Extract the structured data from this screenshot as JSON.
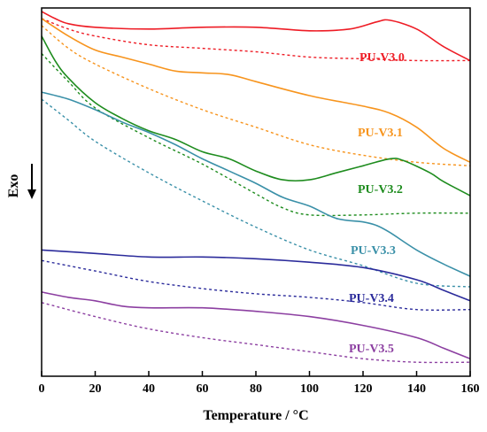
{
  "chart_data": {
    "type": "line",
    "xlabel": "Temperature / °C",
    "ylabel": "Exo",
    "xlim": [
      0,
      160
    ],
    "x_ticks": [
      "0",
      "20",
      "40",
      "60",
      "80",
      "100",
      "120",
      "140",
      "160"
    ],
    "y_ticks_shown": false,
    "grid": false,
    "legend": "inline labels at right side",
    "series": [
      {
        "name": "PU-V3.0",
        "color": "#ee1c25",
        "solid": [
          [
            0,
            99
          ],
          [
            5,
            97
          ],
          [
            10,
            95.5
          ],
          [
            20,
            94.5
          ],
          [
            40,
            94
          ],
          [
            60,
            94.5
          ],
          [
            80,
            94.5
          ],
          [
            100,
            93.5
          ],
          [
            115,
            94
          ],
          [
            125,
            96
          ],
          [
            130,
            96.5
          ],
          [
            140,
            94
          ],
          [
            150,
            89
          ],
          [
            160,
            85
          ]
        ],
        "dashed": [
          [
            0,
            97
          ],
          [
            10,
            94
          ],
          [
            20,
            92
          ],
          [
            40,
            89.5
          ],
          [
            60,
            88.5
          ],
          [
            80,
            87.5
          ],
          [
            100,
            86
          ],
          [
            120,
            85.5
          ],
          [
            140,
            85
          ],
          [
            160,
            85
          ]
        ]
      },
      {
        "name": "PU-V3.1",
        "color": "#f7941d",
        "solid": [
          [
            0,
            97
          ],
          [
            10,
            92
          ],
          [
            20,
            88
          ],
          [
            30,
            86
          ],
          [
            40,
            84
          ],
          [
            50,
            82
          ],
          [
            60,
            81.5
          ],
          [
            70,
            81
          ],
          [
            80,
            79
          ],
          [
            100,
            75
          ],
          [
            120,
            72
          ],
          [
            130,
            70
          ],
          [
            140,
            66
          ],
          [
            150,
            60
          ],
          [
            160,
            56
          ]
        ],
        "dashed": [
          [
            0,
            95
          ],
          [
            10,
            88.5
          ],
          [
            20,
            84
          ],
          [
            40,
            77
          ],
          [
            60,
            71
          ],
          [
            80,
            66
          ],
          [
            100,
            61
          ],
          [
            120,
            58
          ],
          [
            140,
            56
          ],
          [
            160,
            55
          ]
        ]
      },
      {
        "name": "PU-V3.2",
        "color": "#1e8c1e",
        "solid": [
          [
            0,
            92
          ],
          [
            5,
            85
          ],
          [
            10,
            80
          ],
          [
            20,
            73
          ],
          [
            30,
            68.5
          ],
          [
            40,
            65
          ],
          [
            50,
            62.5
          ],
          [
            60,
            59
          ],
          [
            70,
            57
          ],
          [
            80,
            53.5
          ],
          [
            90,
            51
          ],
          [
            100,
            51
          ],
          [
            110,
            53
          ],
          [
            120,
            55
          ],
          [
            130,
            57
          ],
          [
            135,
            56.5
          ],
          [
            145,
            53
          ],
          [
            150,
            50.5
          ],
          [
            160,
            46.5
          ]
        ],
        "dashed": [
          [
            0,
            87
          ],
          [
            10,
            79
          ],
          [
            20,
            71.5
          ],
          [
            40,
            63
          ],
          [
            60,
            55.5
          ],
          [
            80,
            47
          ],
          [
            90,
            43
          ],
          [
            100,
            41
          ],
          [
            120,
            41
          ],
          [
            140,
            41.5
          ],
          [
            160,
            41.5
          ]
        ]
      },
      {
        "name": "PU-V3.3",
        "color": "#3a90a8",
        "solid": [
          [
            0,
            76
          ],
          [
            10,
            74
          ],
          [
            20,
            71
          ],
          [
            30,
            67.5
          ],
          [
            40,
            64.5
          ],
          [
            50,
            61
          ],
          [
            60,
            57
          ],
          [
            70,
            53.5
          ],
          [
            80,
            50
          ],
          [
            90,
            46
          ],
          [
            100,
            43.5
          ],
          [
            110,
            40
          ],
          [
            120,
            39
          ],
          [
            125,
            38
          ],
          [
            130,
            36
          ],
          [
            140,
            31
          ],
          [
            150,
            27
          ],
          [
            160,
            23.5
          ]
        ],
        "dashed": [
          [
            0,
            74
          ],
          [
            10,
            68
          ],
          [
            20,
            62
          ],
          [
            40,
            53
          ],
          [
            60,
            45
          ],
          [
            80,
            37.5
          ],
          [
            100,
            31
          ],
          [
            120,
            26.5
          ],
          [
            140,
            21.5
          ],
          [
            160,
            20.5
          ]
        ]
      },
      {
        "name": "PU-V3.4",
        "color": "#2b2b9b",
        "solid": [
          [
            0,
            31
          ],
          [
            20,
            30
          ],
          [
            40,
            29
          ],
          [
            60,
            29
          ],
          [
            80,
            28.5
          ],
          [
            100,
            27.5
          ],
          [
            120,
            26
          ],
          [
            140,
            22.5
          ],
          [
            150,
            19.5
          ],
          [
            160,
            16.5
          ]
        ],
        "dashed": [
          [
            0,
            28
          ],
          [
            20,
            25
          ],
          [
            40,
            22
          ],
          [
            60,
            20
          ],
          [
            80,
            18.5
          ],
          [
            100,
            17.5
          ],
          [
            120,
            16
          ],
          [
            140,
            14
          ],
          [
            160,
            14
          ]
        ]
      },
      {
        "name": "PU-V3.5",
        "color": "#8c3fa1",
        "solid": [
          [
            0,
            19
          ],
          [
            10,
            17.5
          ],
          [
            20,
            16.5
          ],
          [
            30,
            15
          ],
          [
            40,
            14.5
          ],
          [
            60,
            14.5
          ],
          [
            80,
            13.5
          ],
          [
            100,
            12
          ],
          [
            120,
            9.5
          ],
          [
            140,
            6
          ],
          [
            150,
            3
          ],
          [
            160,
            0
          ]
        ],
        "dashed": [
          [
            0,
            16
          ],
          [
            20,
            12
          ],
          [
            40,
            8.5
          ],
          [
            60,
            6
          ],
          [
            80,
            4
          ],
          [
            100,
            2
          ],
          [
            120,
            0
          ],
          [
            140,
            -1
          ],
          [
            160,
            -1
          ]
        ]
      }
    ]
  }
}
